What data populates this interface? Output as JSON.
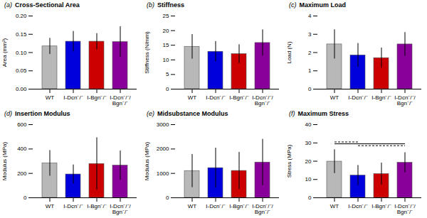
{
  "chart_data": [
    {
      "type": "bar",
      "title": "Cross-Sectional Area",
      "annotations": [
        "(a)"
      ],
      "ylabel": "Area (mm²)",
      "categories": [
        "WT",
        "I-Dcn⁻/⁻",
        "I-Bgn⁻/⁻",
        "I-Dcn⁻/⁻/Bgn⁻/⁻"
      ],
      "values": [
        0.117,
        0.13,
        0.13,
        0.129
      ],
      "errors": [
        0.022,
        0.028,
        0.022,
        0.042
      ],
      "colors": [
        "#b8b8b8",
        "#0000dd",
        "#cc0000",
        "#880099"
      ],
      "ylim": [
        0,
        0.2
      ],
      "yticks": [
        {
          "value": 0.0,
          "label": "0.00"
        },
        {
          "value": 0.05,
          "label": "0.05"
        },
        {
          "value": 0.1,
          "label": "0.10"
        },
        {
          "value": 0.15,
          "label": "0.15"
        },
        {
          "value": 0.2,
          "label": "0.20"
        }
      ],
      "grid": false,
      "significance_lines": []
    },
    {
      "type": "bar",
      "title": "Stiffness",
      "annotations": [
        "(b)"
      ],
      "ylabel": "Stiffness (N/mm)",
      "categories": [
        "WT",
        "I-Dcn⁻/⁻",
        "I-Bgn⁻/⁻",
        "I-Dcn⁻/⁻/Bgn⁻/⁻"
      ],
      "values": [
        14.5,
        12.8,
        12.0,
        15.8
      ],
      "errors": [
        4.2,
        3.5,
        3.2,
        4.5
      ],
      "colors": [
        "#b8b8b8",
        "#0000dd",
        "#cc0000",
        "#880099"
      ],
      "ylim": [
        0,
        25
      ],
      "yticks": [
        0,
        5,
        10,
        15,
        20,
        25
      ],
      "grid": false,
      "significance_lines": []
    },
    {
      "type": "bar",
      "title": "Maximum Load",
      "annotations": [
        "(c)"
      ],
      "ylabel": "Load (N)",
      "categories": [
        "WT",
        "I-Dcn⁻/⁻",
        "I-Bgn⁻/⁻",
        "I-Dcn⁻/⁻/Bgn⁻/⁻"
      ],
      "values": [
        2.45,
        1.85,
        1.7,
        2.45
      ],
      "errors": [
        0.8,
        0.65,
        0.55,
        0.65
      ],
      "colors": [
        "#b8b8b8",
        "#0000dd",
        "#cc0000",
        "#880099"
      ],
      "ylim": [
        0,
        4
      ],
      "yticks": [
        0,
        1,
        2,
        3,
        4
      ],
      "grid": false,
      "significance_lines": []
    },
    {
      "type": "bar",
      "title": "Insertion Modulus",
      "annotations": [
        "(d)"
      ],
      "ylabel": "Modulus (MPa)",
      "categories": [
        "WT",
        "I-Dcn⁻/⁻",
        "I-Bgn⁻/⁻",
        "I-Dcn⁻/⁻/Bgn⁻/⁻"
      ],
      "values": [
        283,
        192,
        278,
        265
      ],
      "errors": [
        105,
        78,
        215,
        120
      ],
      "colors": [
        "#b8b8b8",
        "#0000dd",
        "#cc0000",
        "#880099"
      ],
      "ylim": [
        0,
        600
      ],
      "yticks": [
        0,
        200,
        400,
        600
      ],
      "grid": false,
      "significance_lines": []
    },
    {
      "type": "bar",
      "title": "Midsubstance Modulus",
      "annotations": [
        "(e)"
      ],
      "ylabel": "Modulus (MPa)",
      "categories": [
        "WT",
        "I-Dcn⁻/⁻",
        "I-Bgn⁻/⁻",
        "I-Dcn⁻/⁻/Bgn⁻/⁻"
      ],
      "values": [
        1100,
        1220,
        1105,
        1450
      ],
      "errors": [
        680,
        820,
        760,
        950
      ],
      "colors": [
        "#b8b8b8",
        "#0000dd",
        "#cc0000",
        "#880099"
      ],
      "ylim": [
        0,
        3000
      ],
      "yticks": [
        0,
        1000,
        2000,
        3000
      ],
      "grid": false,
      "significance_lines": []
    },
    {
      "type": "bar",
      "title": "Maximum Stress",
      "annotations": [
        "(f)"
      ],
      "ylabel": "Stress (MPa)",
      "categories": [
        "WT",
        "I-Dcn⁻/⁻",
        "I-Bgn⁻/⁻",
        "I-Dcn⁻/⁻/Bgn⁻/⁻"
      ],
      "values": [
        19.8,
        12.2,
        13.0,
        19.2
      ],
      "errors": [
        6.5,
        5.5,
        6.0,
        5.5
      ],
      "colors": [
        "#b8b8b8",
        "#0000dd",
        "#cc0000",
        "#880099"
      ],
      "ylim": [
        0,
        40
      ],
      "yticks": [
        0,
        10,
        20,
        30,
        40
      ],
      "grid": false,
      "significance_lines": [
        {
          "x1": "WT",
          "x2": "I-Dcn⁻/⁻",
          "y": 30.5,
          "line_style": "dashed"
        },
        {
          "x1": "WT",
          "x2": "I-Dcn⁻/⁻/Bgn⁻/⁻",
          "y": 29.5,
          "line_style": "solid"
        },
        {
          "x1": "I-Dcn⁻/⁻",
          "x2": "I-Dcn⁻/⁻/Bgn⁻/⁻",
          "y": 28.5,
          "line_style": "dashed"
        }
      ]
    }
  ]
}
